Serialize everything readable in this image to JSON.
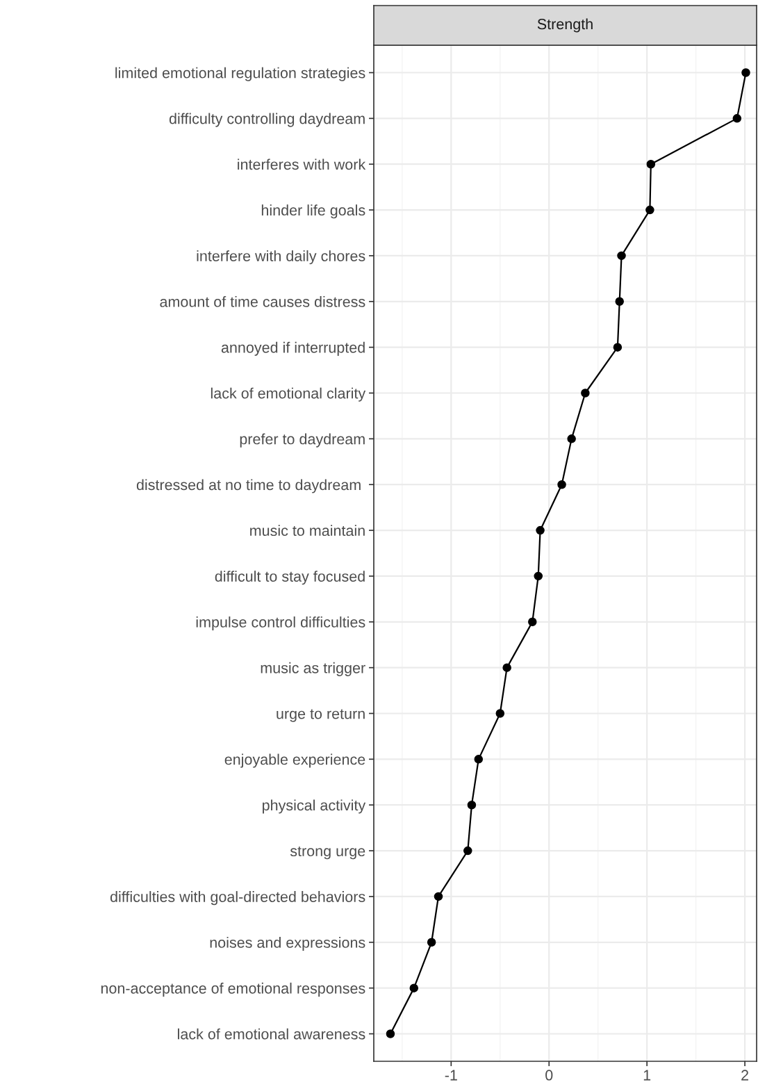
{
  "chart_data": {
    "type": "line",
    "title": "Strength",
    "orientation": "horizontal",
    "marker": "circle",
    "line_style": "solid",
    "grid": true,
    "categories": [
      "limited emotional regulation strategies",
      "difficulty controlling daydream",
      "interferes with work",
      "hinder life goals",
      "interfere with daily chores",
      "amount of time causes distress",
      "annoyed if interrupted",
      "lack of emotional clarity",
      "prefer to daydream",
      "distressed at no time to daydream ",
      "music to maintain",
      "difficult to stay focused",
      "impulse control difficulties",
      "music as trigger",
      "urge to return",
      "enjoyable experience",
      "physical activity",
      "strong urge",
      "difficulties with goal-directed behaviors",
      "noises and expressions",
      "non-acceptance of emotional responses",
      "lack of emotional awareness"
    ],
    "series": [
      {
        "color": "#000000",
        "values": [
          2.01,
          1.92,
          1.04,
          1.03,
          0.74,
          0.72,
          0.7,
          0.37,
          0.23,
          0.13,
          -0.09,
          -0.11,
          -0.17,
          -0.43,
          -0.5,
          -0.72,
          -0.79,
          -0.83,
          -1.13,
          -1.2,
          -1.38,
          -1.62
        ]
      }
    ],
    "xlim": [
      -1.79,
      2.12
    ],
    "xticks": [
      -1,
      0,
      1,
      2
    ]
  }
}
